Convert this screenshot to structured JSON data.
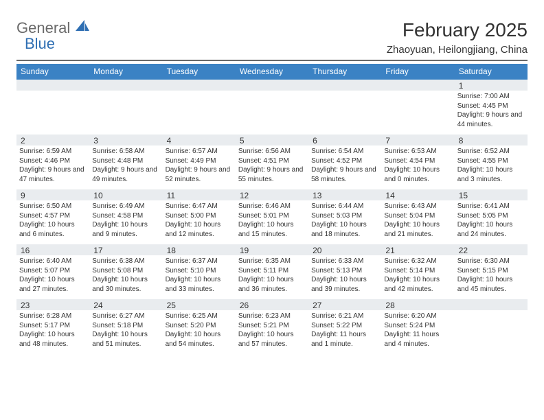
{
  "logo": {
    "text1": "General",
    "text2": "Blue",
    "sail_color": "#2f6fb3"
  },
  "title": "February 2025",
  "location": "Zhaoyuan, Heilongjiang, China",
  "colors": {
    "header_bar": "#3b82c4",
    "header_text": "#ffffff",
    "daynum_bg": "#e9ecef",
    "rule": "#6a6a6a",
    "text": "#333333",
    "background": "#ffffff"
  },
  "typography": {
    "title_fontsize": 28,
    "location_fontsize": 15,
    "dow_fontsize": 12,
    "daynum_fontsize": 12,
    "body_fontsize": 10
  },
  "days_of_week": [
    "Sunday",
    "Monday",
    "Tuesday",
    "Wednesday",
    "Thursday",
    "Friday",
    "Saturday"
  ],
  "weeks": [
    [
      {
        "n": "",
        "sunrise": "",
        "sunset": "",
        "daylight": ""
      },
      {
        "n": "",
        "sunrise": "",
        "sunset": "",
        "daylight": ""
      },
      {
        "n": "",
        "sunrise": "",
        "sunset": "",
        "daylight": ""
      },
      {
        "n": "",
        "sunrise": "",
        "sunset": "",
        "daylight": ""
      },
      {
        "n": "",
        "sunrise": "",
        "sunset": "",
        "daylight": ""
      },
      {
        "n": "",
        "sunrise": "",
        "sunset": "",
        "daylight": ""
      },
      {
        "n": "1",
        "sunrise": "Sunrise: 7:00 AM",
        "sunset": "Sunset: 4:45 PM",
        "daylight": "Daylight: 9 hours and 44 minutes."
      }
    ],
    [
      {
        "n": "2",
        "sunrise": "Sunrise: 6:59 AM",
        "sunset": "Sunset: 4:46 PM",
        "daylight": "Daylight: 9 hours and 47 minutes."
      },
      {
        "n": "3",
        "sunrise": "Sunrise: 6:58 AM",
        "sunset": "Sunset: 4:48 PM",
        "daylight": "Daylight: 9 hours and 49 minutes."
      },
      {
        "n": "4",
        "sunrise": "Sunrise: 6:57 AM",
        "sunset": "Sunset: 4:49 PM",
        "daylight": "Daylight: 9 hours and 52 minutes."
      },
      {
        "n": "5",
        "sunrise": "Sunrise: 6:56 AM",
        "sunset": "Sunset: 4:51 PM",
        "daylight": "Daylight: 9 hours and 55 minutes."
      },
      {
        "n": "6",
        "sunrise": "Sunrise: 6:54 AM",
        "sunset": "Sunset: 4:52 PM",
        "daylight": "Daylight: 9 hours and 58 minutes."
      },
      {
        "n": "7",
        "sunrise": "Sunrise: 6:53 AM",
        "sunset": "Sunset: 4:54 PM",
        "daylight": "Daylight: 10 hours and 0 minutes."
      },
      {
        "n": "8",
        "sunrise": "Sunrise: 6:52 AM",
        "sunset": "Sunset: 4:55 PM",
        "daylight": "Daylight: 10 hours and 3 minutes."
      }
    ],
    [
      {
        "n": "9",
        "sunrise": "Sunrise: 6:50 AM",
        "sunset": "Sunset: 4:57 PM",
        "daylight": "Daylight: 10 hours and 6 minutes."
      },
      {
        "n": "10",
        "sunrise": "Sunrise: 6:49 AM",
        "sunset": "Sunset: 4:58 PM",
        "daylight": "Daylight: 10 hours and 9 minutes."
      },
      {
        "n": "11",
        "sunrise": "Sunrise: 6:47 AM",
        "sunset": "Sunset: 5:00 PM",
        "daylight": "Daylight: 10 hours and 12 minutes."
      },
      {
        "n": "12",
        "sunrise": "Sunrise: 6:46 AM",
        "sunset": "Sunset: 5:01 PM",
        "daylight": "Daylight: 10 hours and 15 minutes."
      },
      {
        "n": "13",
        "sunrise": "Sunrise: 6:44 AM",
        "sunset": "Sunset: 5:03 PM",
        "daylight": "Daylight: 10 hours and 18 minutes."
      },
      {
        "n": "14",
        "sunrise": "Sunrise: 6:43 AM",
        "sunset": "Sunset: 5:04 PM",
        "daylight": "Daylight: 10 hours and 21 minutes."
      },
      {
        "n": "15",
        "sunrise": "Sunrise: 6:41 AM",
        "sunset": "Sunset: 5:05 PM",
        "daylight": "Daylight: 10 hours and 24 minutes."
      }
    ],
    [
      {
        "n": "16",
        "sunrise": "Sunrise: 6:40 AM",
        "sunset": "Sunset: 5:07 PM",
        "daylight": "Daylight: 10 hours and 27 minutes."
      },
      {
        "n": "17",
        "sunrise": "Sunrise: 6:38 AM",
        "sunset": "Sunset: 5:08 PM",
        "daylight": "Daylight: 10 hours and 30 minutes."
      },
      {
        "n": "18",
        "sunrise": "Sunrise: 6:37 AM",
        "sunset": "Sunset: 5:10 PM",
        "daylight": "Daylight: 10 hours and 33 minutes."
      },
      {
        "n": "19",
        "sunrise": "Sunrise: 6:35 AM",
        "sunset": "Sunset: 5:11 PM",
        "daylight": "Daylight: 10 hours and 36 minutes."
      },
      {
        "n": "20",
        "sunrise": "Sunrise: 6:33 AM",
        "sunset": "Sunset: 5:13 PM",
        "daylight": "Daylight: 10 hours and 39 minutes."
      },
      {
        "n": "21",
        "sunrise": "Sunrise: 6:32 AM",
        "sunset": "Sunset: 5:14 PM",
        "daylight": "Daylight: 10 hours and 42 minutes."
      },
      {
        "n": "22",
        "sunrise": "Sunrise: 6:30 AM",
        "sunset": "Sunset: 5:15 PM",
        "daylight": "Daylight: 10 hours and 45 minutes."
      }
    ],
    [
      {
        "n": "23",
        "sunrise": "Sunrise: 6:28 AM",
        "sunset": "Sunset: 5:17 PM",
        "daylight": "Daylight: 10 hours and 48 minutes."
      },
      {
        "n": "24",
        "sunrise": "Sunrise: 6:27 AM",
        "sunset": "Sunset: 5:18 PM",
        "daylight": "Daylight: 10 hours and 51 minutes."
      },
      {
        "n": "25",
        "sunrise": "Sunrise: 6:25 AM",
        "sunset": "Sunset: 5:20 PM",
        "daylight": "Daylight: 10 hours and 54 minutes."
      },
      {
        "n": "26",
        "sunrise": "Sunrise: 6:23 AM",
        "sunset": "Sunset: 5:21 PM",
        "daylight": "Daylight: 10 hours and 57 minutes."
      },
      {
        "n": "27",
        "sunrise": "Sunrise: 6:21 AM",
        "sunset": "Sunset: 5:22 PM",
        "daylight": "Daylight: 11 hours and 1 minute."
      },
      {
        "n": "28",
        "sunrise": "Sunrise: 6:20 AM",
        "sunset": "Sunset: 5:24 PM",
        "daylight": "Daylight: 11 hours and 4 minutes."
      },
      {
        "n": "",
        "sunrise": "",
        "sunset": "",
        "daylight": ""
      }
    ]
  ]
}
